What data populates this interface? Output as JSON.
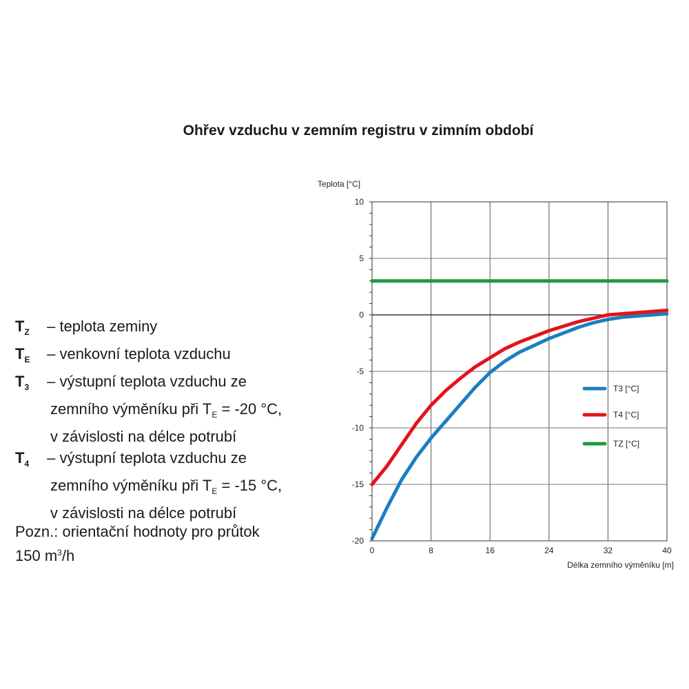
{
  "title": "Ohřev vzduchu v zemním registru v zimním období",
  "definitions": [
    {
      "symbol": "T",
      "sub": "Z",
      "text": " – teplota zeminy"
    },
    {
      "symbol": "T",
      "sub": "E",
      "text": " – venkovní teplota vzduchu"
    },
    {
      "symbol": "T",
      "sub": "3",
      "text": " – výstupní teplota vzduchu ze",
      "line2a": "zemního výměníku při T",
      "line2sub": "E",
      "line2b": " = -20 °C,",
      "line3": "v závislosti na délce potrubí"
    },
    {
      "symbol": "T",
      "sub": "4",
      "text": " – výstupní teplota vzduchu ze",
      "line2a": "zemního výměníku při T",
      "line2sub": "E",
      "line2b": " = -15 °C,",
      "line3": "v závislosti na délce potrubí"
    }
  ],
  "note": {
    "line1": "Pozn.: orientační hodnoty pro průtok",
    "line2a": "150 m",
    "line2sup": "3",
    "line2b": "/h"
  },
  "chart_data": {
    "type": "line",
    "title": "",
    "xlabel": "Délka zemního výměníku [m]",
    "ylabel": "Teplota [°C]",
    "xlim": [
      0,
      40
    ],
    "ylim": [
      -20,
      10
    ],
    "xticks": [
      0,
      8,
      16,
      24,
      32,
      40
    ],
    "yticks": [
      10,
      5,
      0,
      -5,
      -10,
      -15,
      -20
    ],
    "grid": true,
    "legend_position": "right",
    "series": [
      {
        "name": "T3 [°C]",
        "color": "#1a7fc1",
        "x": [
          0,
          2,
          4,
          6,
          8,
          10,
          12,
          14,
          16,
          18,
          20,
          22,
          24,
          26,
          28,
          30,
          32,
          34,
          36,
          38,
          40
        ],
        "y": [
          -19.8,
          -17.1,
          -14.6,
          -12.6,
          -10.9,
          -9.4,
          -7.9,
          -6.4,
          -5.1,
          -4.1,
          -3.3,
          -2.7,
          -2.1,
          -1.6,
          -1.1,
          -0.7,
          -0.4,
          -0.2,
          -0.1,
          0.0,
          0.1
        ]
      },
      {
        "name": "T4 [°C]",
        "color": "#e3131b",
        "x": [
          0,
          2,
          4,
          6,
          8,
          10,
          12,
          14,
          16,
          18,
          20,
          22,
          24,
          26,
          28,
          30,
          32,
          34,
          36,
          38,
          40
        ],
        "y": [
          -15.0,
          -13.4,
          -11.5,
          -9.6,
          -8.0,
          -6.7,
          -5.6,
          -4.6,
          -3.8,
          -3.0,
          -2.4,
          -1.9,
          -1.4,
          -1.0,
          -0.6,
          -0.3,
          0.0,
          0.1,
          0.2,
          0.3,
          0.4
        ]
      },
      {
        "name": "TZ [°C]",
        "color": "#1f9a3e",
        "x": [
          0,
          40
        ],
        "y": [
          3.0,
          3.0
        ]
      }
    ]
  }
}
